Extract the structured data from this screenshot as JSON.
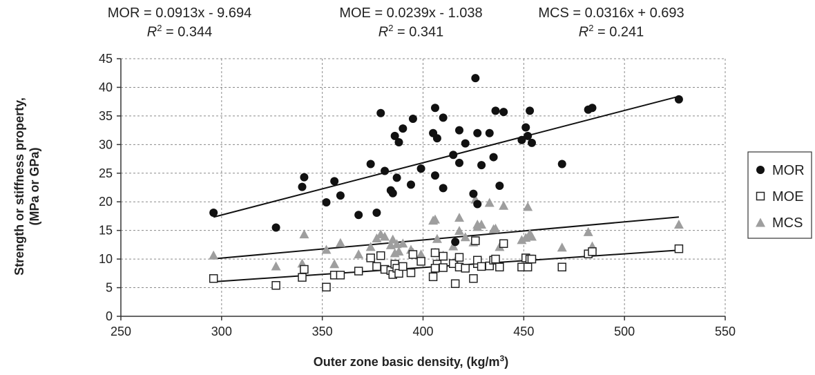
{
  "equations": [
    {
      "text": "MOR = 0.0913x - 9.694",
      "r2_label": "R",
      "r2_sup": "2",
      "r2_value": " = 0.344"
    },
    {
      "text": "MOE = 0.0239x - 1.038",
      "r2_label": "R",
      "r2_sup": "2",
      "r2_value": " = 0.341"
    },
    {
      "text": "MCS = 0.0316x + 0.693",
      "r2_label": "R",
      "r2_sup": "2",
      "r2_value": " = 0.241"
    }
  ],
  "chart_data": {
    "type": "scatter",
    "title": "",
    "xlabel": "Outer zone basic density, (kg/m",
    "xlabel_sup": "3",
    "xlabel_end": ")",
    "ylabel_line1": "Strength or stiffness property,",
    "ylabel_line2": "(MPa or GPa)",
    "xlim": [
      250,
      550
    ],
    "ylim": [
      0,
      45
    ],
    "xticks": [
      250,
      300,
      350,
      400,
      450,
      500,
      550
    ],
    "yticks": [
      0,
      5,
      10,
      15,
      20,
      25,
      30,
      35,
      40,
      45
    ],
    "grid": "dashed",
    "legend_position": "right",
    "series": [
      {
        "name": "MOR",
        "marker": "circle",
        "color": "#111111",
        "trend": {
          "slope": 0.0913,
          "intercept": -9.694,
          "x": [
            296,
            527
          ]
        },
        "points": [
          [
            296,
            18.1
          ],
          [
            327,
            15.5
          ],
          [
            340,
            22.6
          ],
          [
            341,
            24.3
          ],
          [
            352,
            19.9
          ],
          [
            356,
            23.6
          ],
          [
            359,
            21.1
          ],
          [
            368,
            17.7
          ],
          [
            374,
            26.6
          ],
          [
            377,
            18.1
          ],
          [
            379,
            35.5
          ],
          [
            381,
            25.4
          ],
          [
            384,
            22.0
          ],
          [
            385,
            21.5
          ],
          [
            386,
            31.5
          ],
          [
            387,
            24.2
          ],
          [
            388,
            30.4
          ],
          [
            390,
            32.8
          ],
          [
            394,
            23.0
          ],
          [
            395,
            34.5
          ],
          [
            399,
            25.8
          ],
          [
            405,
            32.0
          ],
          [
            406,
            36.4
          ],
          [
            407,
            31.1
          ],
          [
            406,
            24.6
          ],
          [
            410,
            22.4
          ],
          [
            410,
            34.7
          ],
          [
            415,
            28.2
          ],
          [
            416,
            13.0
          ],
          [
            418,
            32.5
          ],
          [
            418,
            26.8
          ],
          [
            421,
            30.2
          ],
          [
            425,
            21.4
          ],
          [
            426,
            41.6
          ],
          [
            427,
            32.0
          ],
          [
            427,
            19.6
          ],
          [
            429,
            26.4
          ],
          [
            433,
            32.0
          ],
          [
            435,
            27.8
          ],
          [
            436,
            35.9
          ],
          [
            438,
            22.8
          ],
          [
            440,
            35.7
          ],
          [
            449,
            30.8
          ],
          [
            451,
            33.0
          ],
          [
            452,
            31.5
          ],
          [
            453,
            35.9
          ],
          [
            454,
            30.3
          ],
          [
            469,
            26.6
          ],
          [
            482,
            36.1
          ],
          [
            484,
            36.4
          ],
          [
            527,
            37.9
          ]
        ]
      },
      {
        "name": "MOE",
        "marker": "square",
        "color": "#222222",
        "trend": {
          "slope": 0.0239,
          "intercept": -1.038,
          "x": [
            296,
            527
          ]
        },
        "points": [
          [
            296,
            6.6
          ],
          [
            327,
            5.4
          ],
          [
            340,
            6.8
          ],
          [
            341,
            8.2
          ],
          [
            352,
            5.1
          ],
          [
            356,
            7.2
          ],
          [
            359,
            7.2
          ],
          [
            368,
            7.9
          ],
          [
            374,
            10.2
          ],
          [
            377,
            8.7
          ],
          [
            379,
            10.6
          ],
          [
            381,
            8.2
          ],
          [
            384,
            8.0
          ],
          [
            385,
            7.3
          ],
          [
            386,
            9.1
          ],
          [
            387,
            8.4
          ],
          [
            388,
            7.5
          ],
          [
            390,
            8.7
          ],
          [
            394,
            7.6
          ],
          [
            395,
            10.8
          ],
          [
            399,
            9.6
          ],
          [
            405,
            6.9
          ],
          [
            406,
            11.1
          ],
          [
            407,
            9.1
          ],
          [
            406,
            8.4
          ],
          [
            410,
            10.5
          ],
          [
            410,
            8.5
          ],
          [
            415,
            9.2
          ],
          [
            416,
            5.7
          ],
          [
            418,
            10.3
          ],
          [
            418,
            8.6
          ],
          [
            421,
            8.4
          ],
          [
            425,
            6.6
          ],
          [
            426,
            13.2
          ],
          [
            427,
            9.2
          ],
          [
            427,
            9.8
          ],
          [
            429,
            8.7
          ],
          [
            433,
            8.8
          ],
          [
            435,
            9.8
          ],
          [
            436,
            10.0
          ],
          [
            438,
            8.6
          ],
          [
            440,
            12.7
          ],
          [
            449,
            8.6
          ],
          [
            451,
            10.2
          ],
          [
            452,
            8.6
          ],
          [
            453,
            10.0
          ],
          [
            454,
            10.0
          ],
          [
            469,
            8.6
          ],
          [
            482,
            10.9
          ],
          [
            484,
            11.3
          ],
          [
            527,
            11.8
          ]
        ]
      },
      {
        "name": "MCS",
        "marker": "triangle",
        "color": "#9e9e9e",
        "trend": {
          "slope": 0.0316,
          "intercept": 0.693,
          "x": [
            296,
            527
          ]
        },
        "points": [
          [
            296,
            10.7
          ],
          [
            327,
            8.8
          ],
          [
            340,
            9.3
          ],
          [
            341,
            14.4
          ],
          [
            352,
            11.7
          ],
          [
            356,
            9.2
          ],
          [
            359,
            12.9
          ],
          [
            368,
            10.9
          ],
          [
            374,
            12.2
          ],
          [
            377,
            13.7
          ],
          [
            379,
            14.4
          ],
          [
            381,
            14.0
          ],
          [
            384,
            12.5
          ],
          [
            385,
            13.5
          ],
          [
            386,
            11.1
          ],
          [
            387,
            12.7
          ],
          [
            388,
            11.4
          ],
          [
            390,
            12.8
          ],
          [
            394,
            11.7
          ],
          [
            395,
            11.2
          ],
          [
            399,
            10.9
          ],
          [
            405,
            16.8
          ],
          [
            406,
            17.0
          ],
          [
            407,
            13.6
          ],
          [
            406,
            11.2
          ],
          [
            410,
            10.7
          ],
          [
            410,
            10.5
          ],
          [
            415,
            12.3
          ],
          [
            416,
            9.7
          ],
          [
            418,
            17.3
          ],
          [
            418,
            15.0
          ],
          [
            421,
            13.9
          ],
          [
            425,
            13.0
          ],
          [
            426,
            20.5
          ],
          [
            427,
            16.1
          ],
          [
            427,
            15.7
          ],
          [
            429,
            16.1
          ],
          [
            433,
            19.9
          ],
          [
            435,
            15.3
          ],
          [
            436,
            15.4
          ],
          [
            438,
            12.2
          ],
          [
            440,
            19.4
          ],
          [
            449,
            13.4
          ],
          [
            451,
            13.8
          ],
          [
            452,
            19.2
          ],
          [
            453,
            14.5
          ],
          [
            454,
            14.0
          ],
          [
            469,
            12.1
          ],
          [
            482,
            14.8
          ],
          [
            484,
            12.3
          ],
          [
            527,
            16.1
          ]
        ]
      }
    ]
  }
}
